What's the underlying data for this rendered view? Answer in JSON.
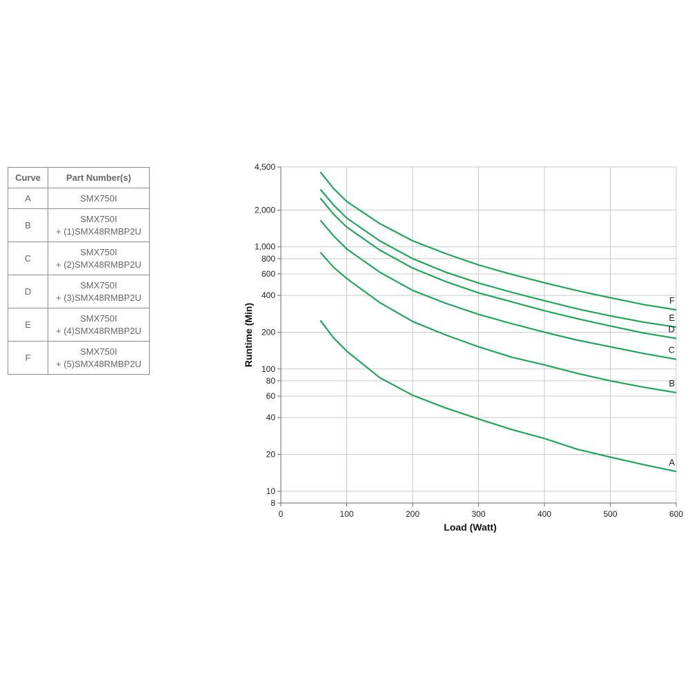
{
  "table": {
    "headers": {
      "curve": "Curve",
      "part": "Part Number(s)"
    },
    "rows": [
      {
        "curve": "A",
        "line1": "SMX750I",
        "line2": ""
      },
      {
        "curve": "B",
        "line1": "SMX750I",
        "line2": "+ (1)SMX48RMBP2U"
      },
      {
        "curve": "C",
        "line1": "SMX750I",
        "line2": "+ (2)SMX48RMBP2U"
      },
      {
        "curve": "D",
        "line1": "SMX750I",
        "line2": "+ (3)SMX48RMBP2U"
      },
      {
        "curve": "E",
        "line1": "SMX750I",
        "line2": "+ (4)SMX48RMBP2U"
      },
      {
        "curve": "F",
        "line1": "SMX750I",
        "line2": "+ (5)SMX48RMBP2U"
      }
    ]
  },
  "chart_data": {
    "type": "line",
    "title": "",
    "xlabel": "Load (Watt)",
    "ylabel": "Runtime (Min)",
    "xlim": [
      0,
      600
    ],
    "ylim": [
      8,
      4500
    ],
    "yscale": "log",
    "grid": true,
    "line_color": "#1fa55a",
    "xticks": [
      {
        "value": 0,
        "label": "0"
      },
      {
        "value": 100,
        "label": "100"
      },
      {
        "value": 200,
        "label": "200"
      },
      {
        "value": 300,
        "label": "300"
      },
      {
        "value": 400,
        "label": "400"
      },
      {
        "value": 500,
        "label": "500"
      },
      {
        "value": 600,
        "label": "600"
      }
    ],
    "yticks": [
      {
        "value": 4500,
        "label": "4,500"
      },
      {
        "value": 2000,
        "label": "2,000"
      },
      {
        "value": 1000,
        "label": "1,000"
      },
      {
        "value": 800,
        "label": "800"
      },
      {
        "value": 600,
        "label": "600"
      },
      {
        "value": 400,
        "label": "400"
      },
      {
        "value": 200,
        "label": "200"
      },
      {
        "value": 100,
        "label": "100"
      },
      {
        "value": 80,
        "label": "80"
      },
      {
        "value": 60,
        "label": "60"
      },
      {
        "value": 40,
        "label": "40"
      },
      {
        "value": 20,
        "label": "20"
      },
      {
        "value": 10,
        "label": "10"
      },
      {
        "value": 8,
        "label": "8"
      }
    ],
    "series": [
      {
        "name": "A",
        "x": [
          60,
          80,
          100,
          150,
          200,
          250,
          300,
          350,
          400,
          450,
          500,
          550,
          600
        ],
        "y": [
          250,
          180,
          140,
          85,
          61,
          48,
          39,
          32,
          27,
          22,
          19,
          16.5,
          14.5
        ]
      },
      {
        "name": "B",
        "x": [
          60,
          80,
          100,
          150,
          200,
          250,
          300,
          350,
          400,
          450,
          500,
          550,
          600
        ],
        "y": [
          900,
          680,
          550,
          350,
          245,
          190,
          152,
          125,
          108,
          92,
          80,
          71,
          64
        ]
      },
      {
        "name": "C",
        "x": [
          60,
          80,
          100,
          150,
          200,
          250,
          300,
          350,
          400,
          450,
          500,
          550,
          600
        ],
        "y": [
          1650,
          1230,
          960,
          620,
          440,
          345,
          280,
          235,
          200,
          172,
          152,
          134,
          120
        ]
      },
      {
        "name": "D",
        "x": [
          60,
          80,
          100,
          150,
          200,
          250,
          300,
          350,
          400,
          450,
          500,
          550,
          600
        ],
        "y": [
          2500,
          1850,
          1450,
          940,
          670,
          520,
          420,
          355,
          300,
          258,
          225,
          197,
          178
        ]
      },
      {
        "name": "E",
        "x": [
          60,
          80,
          100,
          150,
          200,
          250,
          300,
          350,
          400,
          450,
          500,
          550,
          600
        ],
        "y": [
          2950,
          2200,
          1720,
          1120,
          800,
          620,
          505,
          425,
          362,
          310,
          272,
          242,
          220
        ]
      },
      {
        "name": "F",
        "x": [
          60,
          80,
          100,
          150,
          200,
          250,
          300,
          350,
          400,
          450,
          500,
          550,
          600
        ],
        "y": [
          4100,
          3000,
          2350,
          1550,
          1120,
          880,
          710,
          595,
          508,
          437,
          383,
          337,
          305
        ]
      }
    ]
  }
}
